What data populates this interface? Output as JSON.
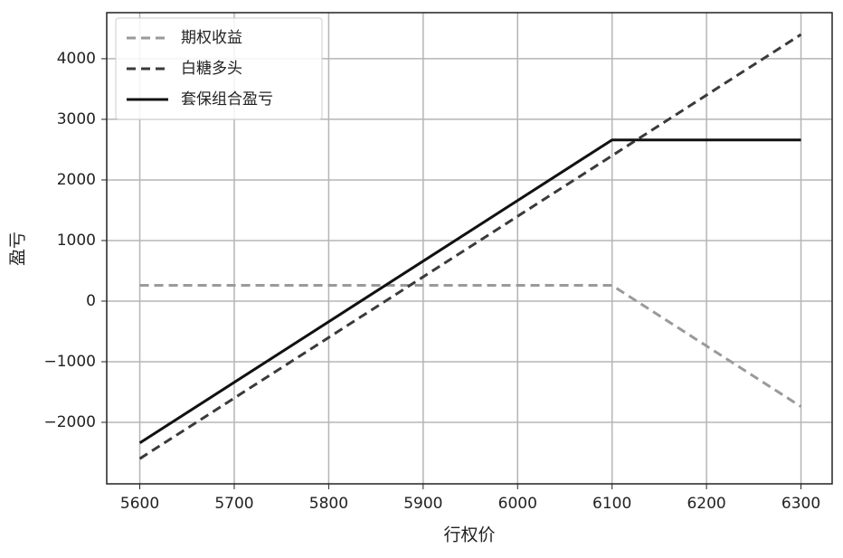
{
  "chart_data": {
    "type": "line",
    "x_label": "行权价",
    "y_label": "盈亏",
    "x": [
      5600,
      6100,
      6300
    ],
    "series": [
      {
        "name": "期权收益",
        "color": "#9a9a9a",
        "dash": "10,6",
        "values": [
          260,
          260,
          -1740
        ]
      },
      {
        "name": "白糖多头",
        "color": "#3a3a3a",
        "dash": "10,6",
        "values": [
          -2600,
          2400,
          4400
        ]
      },
      {
        "name": "套保组合盈亏",
        "color": "#111111",
        "dash": "none",
        "values": [
          -2340,
          2660,
          2660
        ]
      }
    ],
    "xlim": [
      5565,
      6333
    ],
    "ylim": [
      -3015,
      4760
    ],
    "xticks": [
      5600,
      5700,
      5800,
      5900,
      6000,
      6100,
      6200,
      6300
    ],
    "yticks": [
      {
        "value": -2000,
        "label": "−2000"
      },
      {
        "value": -1000,
        "label": "−1000"
      },
      0,
      1000,
      2000,
      3000,
      4000
    ],
    "grid": true,
    "legend": "upper-left"
  }
}
